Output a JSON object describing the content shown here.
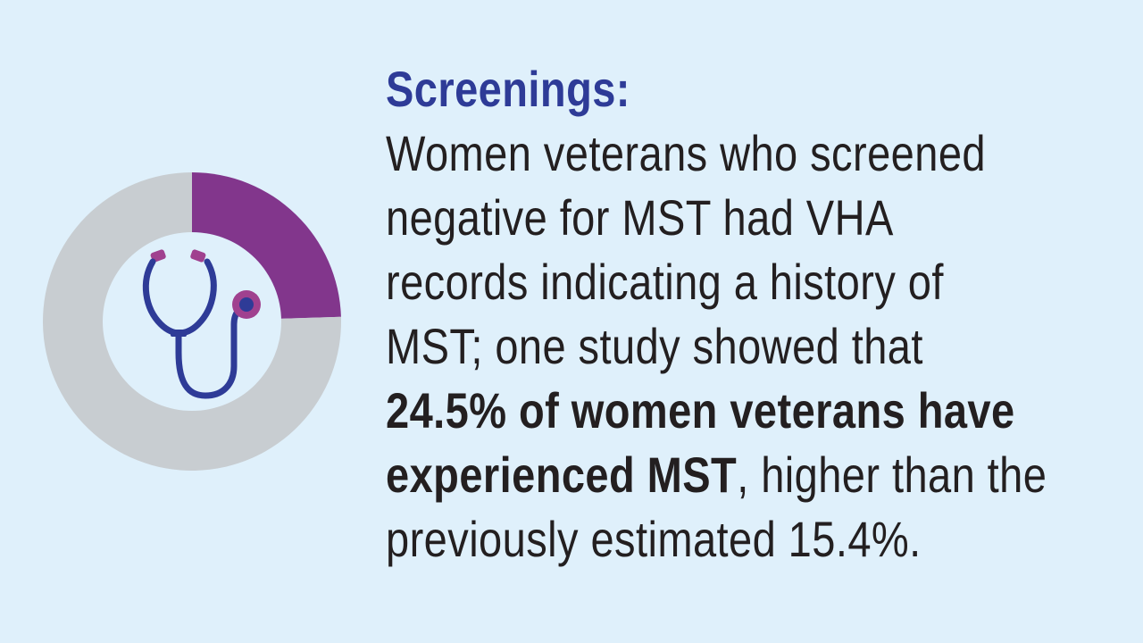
{
  "heading": "Screenings:",
  "body_lines": [
    "Women veterans who screened",
    "negative for MST had VHA",
    "records indicating a history of",
    "MST; one study showed that"
  ],
  "highlight_line_1": "24.5% of women veterans have",
  "highlight_line_2_bold": "experienced MST",
  "highlight_line_2_rest": ", higher than the",
  "final_line": "previously estimated 15.4%.",
  "colors": {
    "background": "#dff0fb",
    "highlight": "#82368c",
    "remainder": "#c8cdd1",
    "heading": "#2e3b97",
    "stethoscope": "#2e3b97",
    "earpiece": "#a0418f"
  },
  "icon": "stethoscope-icon",
  "chart_data": {
    "type": "pie",
    "style": "donut",
    "start": "top",
    "direction": "clockwise",
    "values": [
      24.5,
      75.5
    ]
  }
}
